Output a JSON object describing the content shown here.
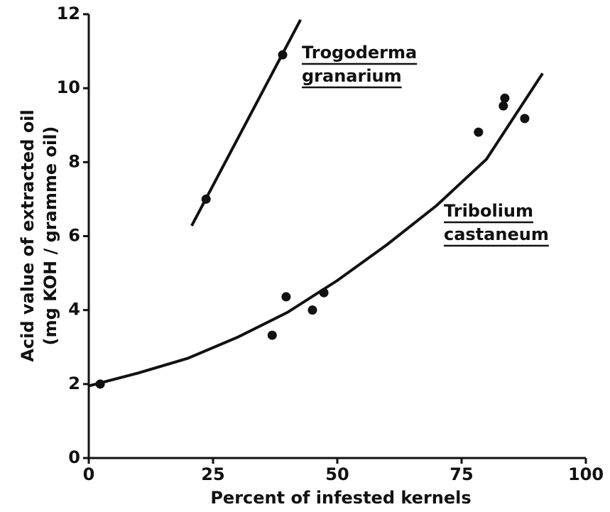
{
  "chart_data": {
    "type": "scatter",
    "xlabel": "Percent of infested kernels",
    "ylabel": [
      "Acid value of extracted oil",
      "(mg KOH / gramme oil)"
    ],
    "xlim": [
      0,
      100
    ],
    "xticks": [
      0,
      25,
      50,
      75,
      100
    ],
    "ylim": [
      0,
      12
    ],
    "yticks": [
      0,
      2,
      4,
      6,
      8,
      10,
      12
    ],
    "color": "#111111",
    "series": [
      {
        "name": "Trogoderma granarium",
        "label": [
          "Trogoderma",
          "granarium"
        ],
        "x": [
          23.6,
          39
        ],
        "values": [
          7.0,
          10.9
        ],
        "fit": {
          "x": [
            20.7,
            42.6
          ],
          "values": [
            6.28,
            11.85
          ]
        }
      },
      {
        "name": "Tribolium castaneum",
        "label": [
          "Tribolium",
          "castaneum"
        ],
        "x": [
          2.3,
          36.9,
          39.7,
          45,
          47.3,
          78.4,
          83.4,
          83.7,
          87.7
        ],
        "values": [
          2.0,
          3.32,
          4.36,
          4.0,
          4.47,
          8.81,
          9.52,
          9.73,
          9.18
        ],
        "fit": {
          "x": [
            0,
            10,
            20,
            30,
            40,
            50,
            60,
            70,
            80,
            91.3
          ],
          "values": [
            1.95,
            2.3,
            2.7,
            3.27,
            3.94,
            4.8,
            5.77,
            6.83,
            8.08,
            10.4
          ]
        }
      }
    ]
  }
}
